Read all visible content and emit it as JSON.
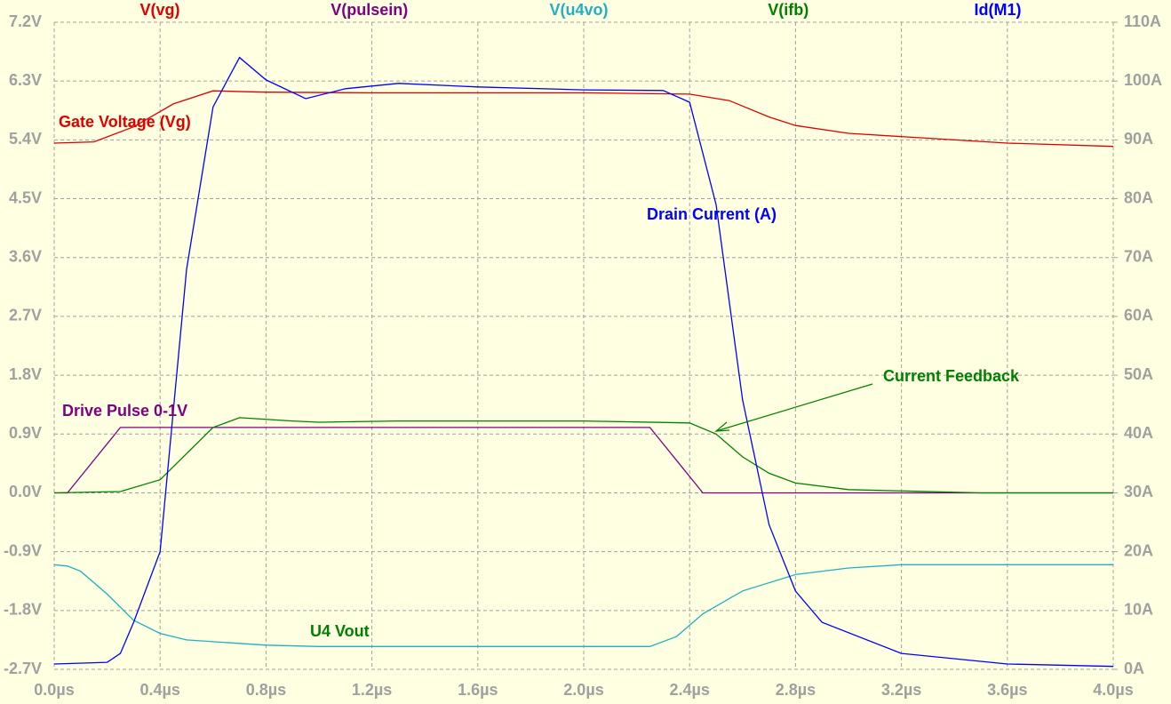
{
  "chart_data": {
    "type": "line",
    "xticks": [
      {
        "value": 0,
        "label": "0.0µs"
      },
      {
        "value": 0.4,
        "label": "0.4µs"
      },
      {
        "value": 0.8,
        "label": "0.8µs"
      },
      {
        "value": 1.2,
        "label": "1.2µs"
      },
      {
        "value": 1.6,
        "label": "1.6µs"
      },
      {
        "value": 2.0,
        "label": "2.0µs"
      },
      {
        "value": 2.4,
        "label": "2.4µs"
      },
      {
        "value": 2.8,
        "label": "2.8µs"
      },
      {
        "value": 3.2,
        "label": "3.2µs"
      },
      {
        "value": 3.6,
        "label": "3.6µs"
      },
      {
        "value": 4.0,
        "label": "4.0µs"
      }
    ],
    "xlim": [
      0,
      4
    ],
    "ylim": [
      -2.7,
      7.2
    ],
    "yticks": [
      {
        "value": -2.7,
        "label": "-2.7V"
      },
      {
        "value": -1.8,
        "label": "-1.8V"
      },
      {
        "value": -0.9,
        "label": "-0.9V"
      },
      {
        "value": 0,
        "label": "0.0V"
      },
      {
        "value": 0.9,
        "label": "0.9V"
      },
      {
        "value": 1.8,
        "label": "1.8V"
      },
      {
        "value": 2.7,
        "label": "2.7V"
      },
      {
        "value": 3.6,
        "label": "3.6V"
      },
      {
        "value": 4.5,
        "label": "4.5V"
      },
      {
        "value": 5.4,
        "label": "5.4V"
      },
      {
        "value": 6.3,
        "label": "6.3V"
      },
      {
        "value": 7.2,
        "label": "7.2V"
      }
    ],
    "y2lim": [
      0,
      110
    ],
    "y2ticks": [
      {
        "value": 0,
        "label": "0A"
      },
      {
        "value": 10,
        "label": "10A"
      },
      {
        "value": 20,
        "label": "20A"
      },
      {
        "value": 30,
        "label": "30A"
      },
      {
        "value": 40,
        "label": "40A"
      },
      {
        "value": 50,
        "label": "50A"
      },
      {
        "value": 60,
        "label": "60A"
      },
      {
        "value": 70,
        "label": "70A"
      },
      {
        "value": 80,
        "label": "80A"
      },
      {
        "value": 90,
        "label": "90A"
      },
      {
        "value": 100,
        "label": "100A"
      },
      {
        "value": 110,
        "label": "110A"
      }
    ],
    "grid": true,
    "series": [
      {
        "name": "V(vg)",
        "color": "#e00000",
        "x": [
          0,
          0.15,
          0.3,
          0.45,
          0.6,
          0.8,
          1.2,
          2.0,
          2.4,
          2.55,
          2.7,
          2.8,
          3.0,
          3.2,
          3.6,
          4.0
        ],
        "values": [
          5.35,
          5.37,
          5.6,
          5.95,
          6.15,
          6.13,
          6.12,
          6.12,
          6.1,
          6.0,
          5.75,
          5.62,
          5.5,
          5.45,
          5.35,
          5.3
        ]
      },
      {
        "name": "V(pulsein)",
        "color": "#800080",
        "x": [
          0,
          0.05,
          0.25,
          2.25,
          2.45,
          4.0
        ],
        "values": [
          0,
          0,
          1.0,
          1.0,
          0,
          0
        ]
      },
      {
        "name": "V(u4vo)",
        "color": "#20b0c0",
        "x": [
          0,
          0.05,
          0.1,
          0.2,
          0.3,
          0.4,
          0.5,
          0.8,
          1.0,
          2.25,
          2.35,
          2.45,
          2.6,
          2.8,
          3.0,
          3.2,
          4.0
        ],
        "values": [
          -1.1,
          -1.12,
          -1.2,
          -1.55,
          -1.95,
          -2.15,
          -2.25,
          -2.33,
          -2.35,
          -2.35,
          -2.2,
          -1.85,
          -1.5,
          -1.25,
          -1.15,
          -1.1,
          -1.1
        ]
      },
      {
        "name": "V(ifb)",
        "color": "#008000",
        "x": [
          0,
          0.25,
          0.4,
          0.5,
          0.6,
          0.7,
          0.9,
          1.0,
          1.3,
          2.0,
          2.4,
          2.5,
          2.6,
          2.7,
          2.8,
          3.0,
          3.5,
          4.0
        ],
        "values": [
          0,
          0.02,
          0.2,
          0.6,
          1.0,
          1.15,
          1.1,
          1.08,
          1.1,
          1.1,
          1.07,
          0.9,
          0.55,
          0.3,
          0.15,
          0.05,
          0,
          0
        ]
      },
      {
        "name": "Id(M1)",
        "color": "#0000ff",
        "axis": "y2",
        "x": [
          0,
          0.2,
          0.25,
          0.3,
          0.4,
          0.5,
          0.6,
          0.7,
          0.8,
          0.95,
          1.1,
          1.3,
          1.6,
          2.0,
          2.3,
          2.4,
          2.5,
          2.6,
          2.7,
          2.8,
          2.9,
          3.2,
          3.6,
          4.0
        ],
        "values": [
          0.9,
          1.2,
          2.7,
          8,
          20,
          68,
          95.6,
          104,
          100.2,
          97,
          98.7,
          99.6,
          99,
          98.5,
          98.4,
          96.4,
          79,
          45.8,
          24.6,
          13.3,
          8,
          2.7,
          0.9,
          0.5
        ]
      }
    ],
    "annotations": [
      "Gate Voltage (Vg)",
      "Drain Current (A)",
      "Current Feedback",
      "Drive Pulse 0-1V",
      "U4 Vout"
    ]
  }
}
